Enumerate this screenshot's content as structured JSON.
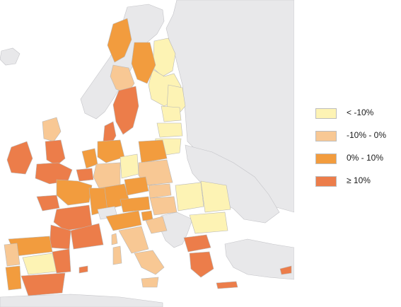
{
  "legend": {
    "items": [
      {
        "label": "< -10%",
        "color": "#fdf3b4"
      },
      {
        "label": "-10% - 0%",
        "color": "#f8c894"
      },
      {
        "label": "0% - 10%",
        "color": "#f29c3e"
      },
      {
        "label": "≥ 10%",
        "color": "#ec7d4a"
      }
    ]
  },
  "map": {
    "water_color": "#ffffff",
    "non_eu_land_color": "#e8e8ea",
    "border_color": "#b8b8b8"
  }
}
